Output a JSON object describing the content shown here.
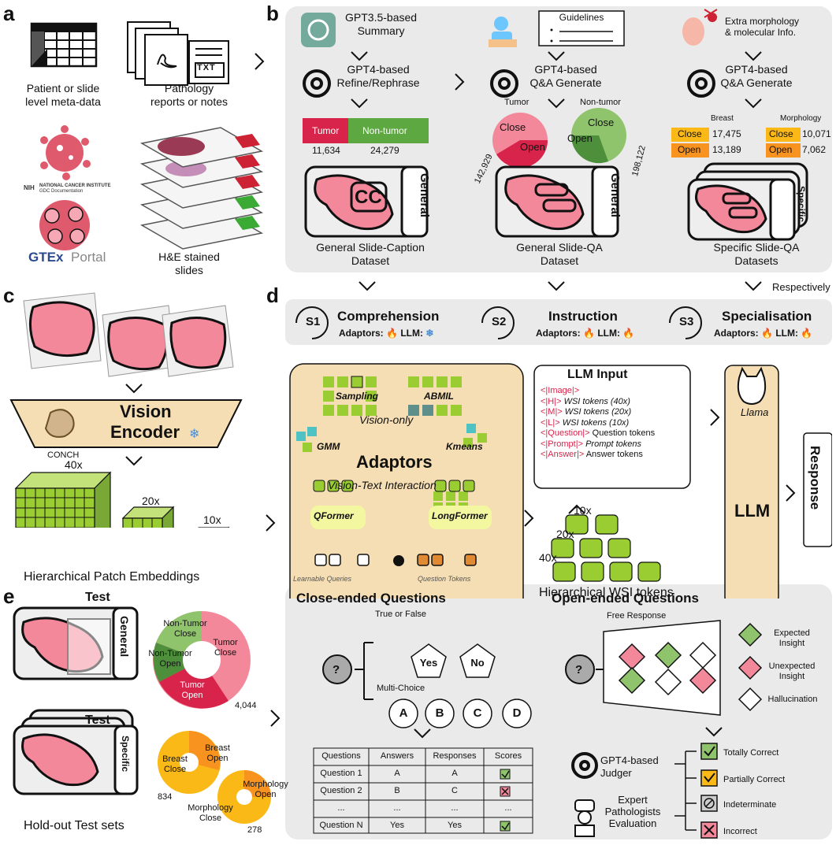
{
  "panels": {
    "a": "a",
    "b": "b",
    "c": "c",
    "d": "d",
    "e": "e"
  },
  "a": {
    "meta_label": "Patient or slide\nlevel meta-data",
    "reports_label": "Pathology\nreports or notes",
    "txt": "TXT",
    "nih": "NIH",
    "nci": "NATIONAL CANCER INSTITUTE",
    "gdc": "GDC Documentation",
    "gtex": "GTEx",
    "gtex_portal": "Portal",
    "slides_label": "H&E stained\nslides"
  },
  "b": {
    "summary": "GPT3.5-based\nSummary",
    "refine": "GPT4-based\nRefine/Rephrase",
    "guidelines": "Guidelines",
    "qa_generate": "GPT4-based\nQ&A Generate",
    "extra": "Extra morphology\n& molecular Info.",
    "qa_generate2": "GPT4-based\nQ&A Generate",
    "bar_tumor": "Tumor",
    "bar_nontumor": "Non-tumor",
    "tumor_label": "Tumor",
    "nontumor_label": "Non-tumor",
    "close": "Close",
    "open": "Open",
    "breast": "Breast",
    "morphology": "Morphology",
    "cc": "CC",
    "general": "General",
    "specific": "Specific",
    "ds1": "General Slide-Caption\nDataset",
    "ds2": "General Slide-QA\nDataset",
    "ds3": "Specific Slide-QA\nDatasets",
    "respective": "Respectively"
  },
  "chart_data": [
    {
      "type": "bar",
      "categories": [
        "Tumor",
        "Non-tumor"
      ],
      "values": [
        11634,
        24279
      ],
      "labels": [
        "11,634",
        "24,279"
      ]
    },
    {
      "type": "pie",
      "title": "Tumor",
      "categories": [
        "Close",
        "Open"
      ],
      "values": [
        142929,
        142929
      ],
      "labels": [
        "142,929"
      ]
    },
    {
      "type": "pie",
      "title": "Non-tumor",
      "categories": [
        "Close",
        "Open"
      ],
      "values": [
        198122,
        198122
      ],
      "labels": [
        "198,122"
      ]
    },
    {
      "type": "table",
      "title": "Breast",
      "categories": [
        "Close",
        "Open"
      ],
      "values": [
        17475,
        13189
      ],
      "labels": [
        "17,475",
        "13,189"
      ]
    },
    {
      "type": "table",
      "title": "Morphology",
      "categories": [
        "Close",
        "Open"
      ],
      "values": [
        10071,
        7062
      ],
      "labels": [
        "10,071",
        "7,062"
      ]
    },
    {
      "type": "pie",
      "title": "General Test",
      "categories": [
        "Non-Tumor Close",
        "Tumor Close",
        "Tumor Open",
        "Non-Tumor Open"
      ],
      "values": [
        0.17,
        0.35,
        0.36,
        0.12
      ],
      "total_label": "4,044"
    },
    {
      "type": "pie",
      "title": "Specific Test",
      "categories": [
        "Breast Close",
        "Breast Open",
        "Morphology Close",
        "Morphology Open"
      ],
      "labels": [
        "834",
        "278"
      ]
    }
  ],
  "c": {
    "conch": "CONCH",
    "vision": "Vision",
    "encoder": "Encoder",
    "m40": "40x",
    "m20": "20x",
    "m10": "10x",
    "caption": "Hierarchical Patch Embeddings"
  },
  "d": {
    "s1": "S1",
    "s2": "S2",
    "s3": "S3",
    "comprehension": "Comprehension",
    "instruction": "Instruction",
    "specialisation": "Specialisation",
    "adaptors_label": "Adaptors:",
    "llm_label": "LLM:",
    "sampling": "Sampling",
    "abmil": "ABMIL",
    "vision_only": "Vision-only",
    "gmm": "GMM",
    "kmeans": "Kmeans",
    "adaptors": "Adaptors",
    "vti": "Vision-Text Interaction",
    "qformer": "QFormer",
    "longformer": "LongFormer",
    "learnable": "Learnable Queries",
    "question_tokens": "Question Tokens",
    "llm_input": "LLM Input",
    "input_lines": [
      {
        "tag": "<|Image|>",
        "rest": ""
      },
      {
        "tag": "<|H|>",
        "rest": " WSI tokens (40x)"
      },
      {
        "tag": "<|M|>",
        "rest": " WSI tokens (20x)"
      },
      {
        "tag": "<|L|>",
        "rest": " WSI tokens (10x)"
      },
      {
        "tag": "<|Question|>",
        "rest": " Question tokens"
      },
      {
        "tag": "<|Prompt|>",
        "rest": " Prompt tokens"
      },
      {
        "tag": "<|Answer|>",
        "rest": " Answer tokens"
      }
    ],
    "t10": "10x",
    "t20": "20x",
    "t40": "40x",
    "hier_tokens": "Hierarchical WSI tokens",
    "llama": "Llama",
    "llm": "LLM",
    "response": "Response"
  },
  "e": {
    "test": "Test",
    "general": "General",
    "specific": "Specific",
    "holdout": "Hold-out Test sets",
    "close_title": "Close-ended Questions",
    "open_title": "Open-ended Questions",
    "true_false": "True or False",
    "multi_choice": "Multi-Choice",
    "yes": "Yes",
    "no": "No",
    "a": "A",
    "b": "B",
    "c": "C",
    "d": "D",
    "q": "?",
    "free_response": "Free Response",
    "expected": "Expected\nInsight",
    "unexpected": "Unexpected\nInsight",
    "hallucination": "Hallucination",
    "table_headers": [
      "Questions",
      "Answers",
      "Responses",
      "Scores"
    ],
    "table_rows": [
      [
        "Question 1",
        "A",
        "A",
        "check"
      ],
      [
        "Question 2",
        "B",
        "C",
        "cross"
      ],
      [
        "...",
        "...",
        "...",
        "..."
      ],
      [
        "Question N",
        "Yes",
        "Yes",
        "check"
      ]
    ],
    "judger": "GPT4-based\nJudger",
    "expert": "Expert\nPathologists\nEvaluation",
    "totally": "Totally Correct",
    "partially": "Partially Correct",
    "indeterminate": "Indeterminate",
    "incorrect": "Incorrect",
    "pie1_labels": [
      "Non-Tumor\nClose",
      "Tumor\nClose",
      "Non-Tumor\nOpen",
      "Tumor\nOpen"
    ],
    "pie1_total": "4,044",
    "pie2_labels": [
      "Breast\nClose",
      "Breast\nOpen",
      "Morphology\nOpen",
      "Morphology\nClose"
    ],
    "pie2_n1": "834",
    "pie2_n2": "278"
  },
  "colors": {
    "green": "#9acd32",
    "pink": "#f48aa0",
    "red": "#d8234a",
    "orange": "#f7931e",
    "yellow": "#fbb917",
    "tan": "#f5deb3"
  }
}
